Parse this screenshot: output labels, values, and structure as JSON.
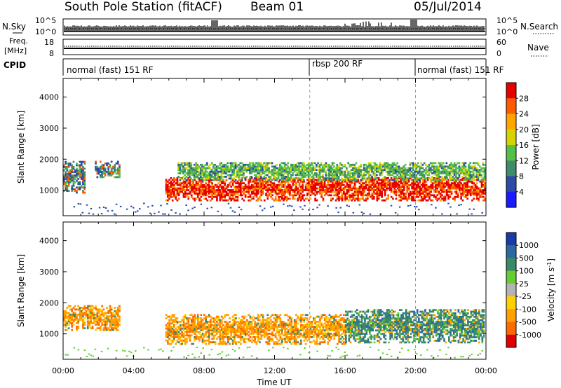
{
  "header": {
    "station": "South Pole Station (fitACF)",
    "beam": "Beam 01",
    "date": "05/Jul/2014"
  },
  "panels": {
    "nsky": {
      "label": "N.Sky",
      "ticks_left": [
        "10^5",
        "10^0"
      ],
      "right_label": "N.Search",
      "ticks_right": [
        "10^5",
        "10^0"
      ]
    },
    "freq": {
      "label_line1": "Freq.",
      "label_line2": "[MHz]",
      "ticks_left": [
        "18",
        "8"
      ],
      "right_label": "Nave",
      "ticks_right": [
        "60",
        "0"
      ]
    },
    "cpid": {
      "label": "CPID",
      "segments": [
        {
          "text": "normal (fast) 151 RF",
          "start_hour": 0,
          "end_hour": 14
        },
        {
          "text": "rbsp 200 RF",
          "start_hour": 14,
          "end_hour": 20
        },
        {
          "text": "normal (fast) 151 RF",
          "start_hour": 20,
          "end_hour": 24
        }
      ]
    }
  },
  "chart_data": [
    {
      "type": "heatmap",
      "quantity": "Power",
      "ylabel": "Slant Range [km]",
      "xlim": [
        0,
        24
      ],
      "ylim": [
        180,
        4600
      ],
      "yticks": [
        1000,
        2000,
        3000,
        4000
      ],
      "colorbar": {
        "label": "Power [dB]",
        "ticks": [
          "4",
          "8",
          "12",
          "16",
          "20",
          "24",
          "28"
        ]
      },
      "echo_regions": [
        {
          "t0": 0.0,
          "t1": 1.2,
          "r0": 900,
          "r1": 1900,
          "level": "medium"
        },
        {
          "t0": 1.8,
          "t1": 3.2,
          "r0": 1400,
          "r1": 1900,
          "level": "medium"
        },
        {
          "t0": 5.8,
          "t1": 23.9,
          "r0": 650,
          "r1": 1400,
          "level": "high"
        },
        {
          "t0": 6.5,
          "t1": 23.9,
          "r0": 1300,
          "r1": 1900,
          "level": "low"
        }
      ]
    },
    {
      "type": "heatmap",
      "quantity": "Velocity",
      "xlabel": "Time UT",
      "ylabel": "Slant Range [km]",
      "xlim": [
        0,
        24
      ],
      "ylim": [
        180,
        4600
      ],
      "xticks": [
        "00:00",
        "04:00",
        "08:00",
        "12:00",
        "16:00",
        "20:00",
        "00:00"
      ],
      "yticks": [
        1000,
        2000,
        3000,
        4000
      ],
      "colorbar": {
        "label": "Velocity [m s",
        "label_sup": "-1",
        "label_end": "]",
        "ticks": [
          "1000",
          "500",
          "100",
          "25",
          "-25",
          "-100",
          "-500",
          "-1000"
        ]
      },
      "echo_regions": [
        {
          "t0": 0.0,
          "t1": 3.2,
          "r0": 1100,
          "r1": 1900,
          "level": "negative"
        },
        {
          "t0": 5.8,
          "t1": 16.0,
          "r0": 650,
          "r1": 1600,
          "level": "negative"
        },
        {
          "t0": 16.0,
          "t1": 23.9,
          "r0": 700,
          "r1": 1800,
          "level": "positive"
        }
      ]
    }
  ],
  "colors": {
    "power_scale": [
      "#1a1aff",
      "#2c4aa6",
      "#3f8c6a",
      "#54c048",
      "#d6d400",
      "#ffa500",
      "#ff5a00",
      "#e60000"
    ],
    "velocity_scale": [
      "#e00000",
      "#ff6a00",
      "#ffa000",
      "#ffd000",
      "#b4b4b4",
      "#66cc33",
      "#3a8a6a",
      "#2a6aa0",
      "#1a3aa6"
    ]
  }
}
